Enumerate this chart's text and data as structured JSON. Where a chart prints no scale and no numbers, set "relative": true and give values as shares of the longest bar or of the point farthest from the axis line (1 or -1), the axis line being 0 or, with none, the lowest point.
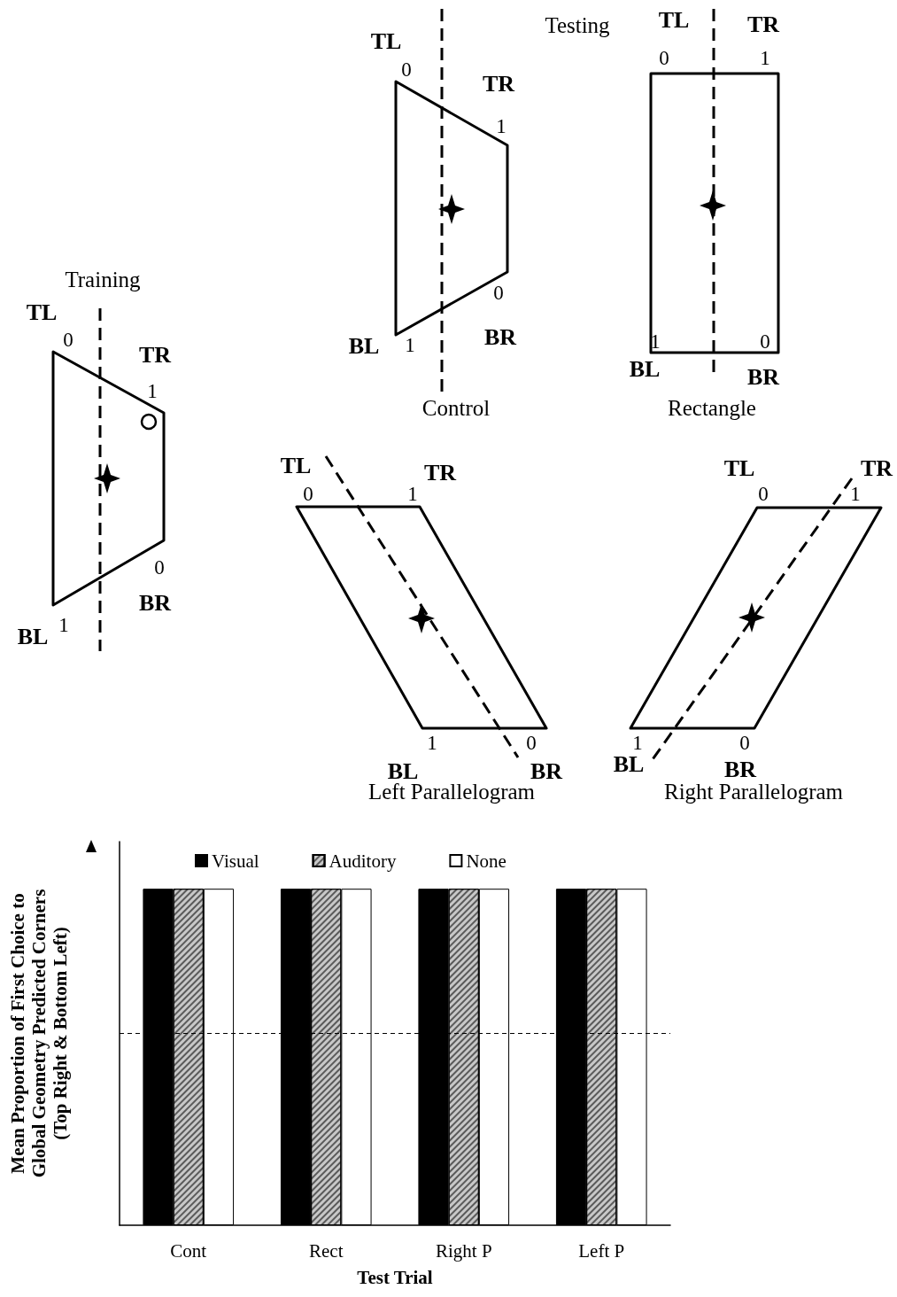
{
  "chart_data": [
    {
      "type": "other",
      "annotations": [
        "Training",
        "TL",
        "0",
        "TR",
        "1",
        "0",
        "BR",
        "BL",
        "1",
        "Testing",
        "TL",
        "0",
        "TR",
        "1",
        "0",
        "BR",
        "BL",
        "1",
        "Control",
        "TL",
        "TR",
        "0",
        "1",
        "1",
        "0",
        "BL",
        "BR",
        "Rectangle",
        "TL",
        "TR",
        "0",
        "1",
        "1",
        "0",
        "BL",
        "BR",
        "Left Parallelogram",
        "TL",
        "TR",
        "0",
        "1",
        "1",
        "0",
        "BL",
        "BR",
        "Right Parallelogram"
      ]
    },
    {
      "type": "bar",
      "relative": true,
      "categories": [
        "Cont",
        "Rect",
        "Right P",
        "Left P"
      ],
      "xlabel": "Test Trial",
      "ylabel": "Mean Proportion of First Choice to\nGlobal Geometry Predicted Corners\n(Top Right & Bottom Left)",
      "series": [
        {
          "name": "Visual",
          "color": "#000000",
          "values": [
            1,
            1,
            1,
            1
          ]
        },
        {
          "name": "Auditory",
          "color": "#c8c8c8",
          "values": [
            1,
            1,
            1,
            1
          ]
        },
        {
          "name": "None",
          "color": "#ffffff",
          "values": [
            1,
            1,
            1,
            1
          ]
        }
      ],
      "ref_lines": [
        {
          "axis": "y",
          "value": 0.57,
          "color": "#000000",
          "line_style": "dashed"
        }
      ],
      "legend": "top",
      "grid": false
    }
  ]
}
